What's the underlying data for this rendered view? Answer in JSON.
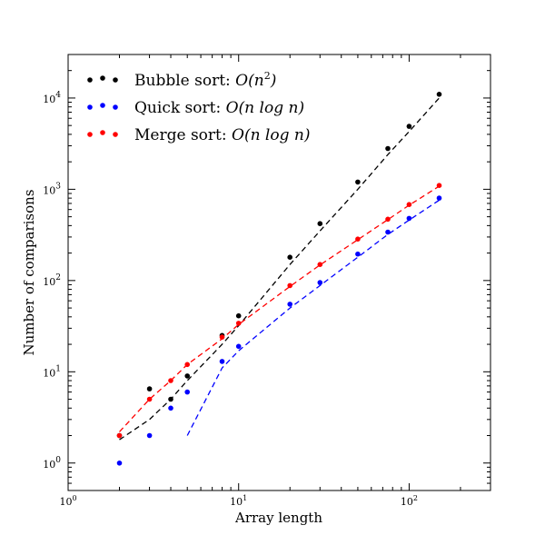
{
  "chart_data": {
    "type": "scatter",
    "title": "",
    "xlabel": "Array length",
    "ylabel": "Number of comparisons",
    "xscale": "log",
    "yscale": "log",
    "xlim": [
      1,
      300
    ],
    "ylim": [
      0.5,
      30000
    ],
    "x_ticks": [
      {
        "base": "10",
        "exp": "0",
        "value": 1
      },
      {
        "base": "10",
        "exp": "1",
        "value": 10
      },
      {
        "base": "10",
        "exp": "2",
        "value": 100
      }
    ],
    "y_ticks": [
      {
        "base": "10",
        "exp": "0",
        "value": 1
      },
      {
        "base": "10",
        "exp": "1",
        "value": 10
      },
      {
        "base": "10",
        "exp": "2",
        "value": 100
      },
      {
        "base": "10",
        "exp": "3",
        "value": 1000
      },
      {
        "base": "10",
        "exp": "4",
        "value": 10000
      }
    ],
    "grid": false,
    "legend_position": "top-left",
    "series": [
      {
        "name_plain": "Bubble sort: ",
        "name_math": "O",
        "name_math_arg": "(n",
        "name_math_sup": "2",
        "name_math_tail": ")",
        "color": "#000000",
        "x": [
          2,
          3,
          4,
          5,
          8,
          10,
          20,
          30,
          50,
          75,
          100,
          150
        ],
        "y": [
          2,
          6.5,
          5,
          9,
          25,
          41,
          180,
          420,
          1200,
          2800,
          4900,
          11000
        ],
        "fit_x": [
          2,
          3,
          4,
          5,
          8,
          10,
          20,
          30,
          50,
          75,
          100,
          150
        ],
        "fit_y": [
          1.8,
          3,
          5,
          8,
          20,
          32,
          150,
          350,
          1000,
          2400,
          4300,
          10000
        ]
      },
      {
        "name_plain": "Quick sort: ",
        "name_math": "O",
        "name_math_arg": "(n log n)",
        "name_math_sup": "",
        "name_math_tail": "",
        "color": "#0000ff",
        "x": [
          2,
          3,
          4,
          5,
          8,
          10,
          20,
          30,
          50,
          75,
          100,
          150
        ],
        "y": [
          1,
          2,
          4,
          6,
          13,
          19,
          55,
          95,
          195,
          340,
          480,
          800
        ],
        "fit_x": [
          5,
          8,
          10,
          20,
          30,
          50,
          75,
          100,
          150
        ],
        "fit_y": [
          2,
          11,
          17,
          50,
          88,
          180,
          320,
          460,
          760
        ]
      },
      {
        "name_plain": "Merge sort: ",
        "name_math": "O",
        "name_math_arg": "(n log n)",
        "name_math_sup": "",
        "name_math_tail": "",
        "color": "#ff0000",
        "x": [
          2,
          3,
          4,
          5,
          8,
          10,
          20,
          30,
          50,
          75,
          100,
          150
        ],
        "y": [
          2,
          5,
          8,
          12,
          24,
          34,
          88,
          150,
          285,
          470,
          680,
          1100
        ],
        "fit_x": [
          2,
          3,
          4,
          5,
          8,
          10,
          20,
          30,
          50,
          75,
          100,
          150
        ],
        "fit_y": [
          2.2,
          5,
          8,
          12,
          23,
          33,
          86,
          148,
          280,
          465,
          670,
          1080
        ]
      }
    ]
  }
}
